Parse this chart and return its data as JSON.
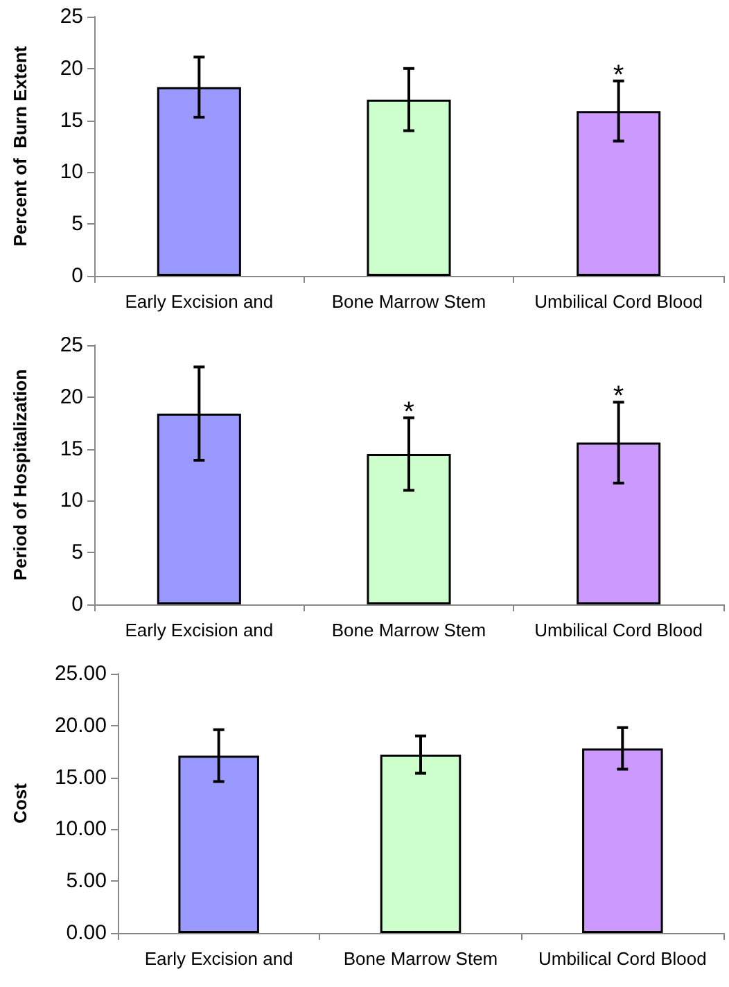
{
  "chart_data": [
    {
      "type": "bar",
      "ylabel": "Percent of  Burn Extent",
      "categories": [
        "Early Excision and",
        "Bone Marrow Stem",
        "Umbilical Cord Blood"
      ],
      "values": [
        18.2,
        17.0,
        15.9
      ],
      "errors": [
        2.9,
        3.0,
        2.9
      ],
      "colors": [
        "#9999ff",
        "#ccffcc",
        "#cc99ff"
      ],
      "ylim": [
        0,
        25
      ],
      "yticks": [
        0,
        5,
        10,
        15,
        20,
        25
      ],
      "grid": false,
      "annotations": [
        {
          "text": "*",
          "x": "Umbilical Cord Blood",
          "y": 18.8
        }
      ]
    },
    {
      "type": "bar",
      "ylabel": "Period of Hospitalization",
      "categories": [
        "Early Excision and",
        "Bone Marrow Stem",
        "Umbilical Cord Blood"
      ],
      "values": [
        18.4,
        14.5,
        15.6
      ],
      "errors": [
        4.5,
        3.5,
        3.9
      ],
      "colors": [
        "#9999ff",
        "#ccffcc",
        "#cc99ff"
      ],
      "ylim": [
        0,
        25
      ],
      "yticks": [
        0,
        5,
        10,
        15,
        20,
        25
      ],
      "grid": false,
      "annotations": [
        {
          "text": "*",
          "x": "Bone Marrow Stem",
          "y": 18.0
        },
        {
          "text": "*",
          "x": "Umbilical Cord Blood",
          "y": 19.5
        }
      ]
    },
    {
      "type": "bar",
      "ylabel": "Cost",
      "categories": [
        "Early Excision and",
        "Bone Marrow Stem",
        "Umbilical Cord Blood"
      ],
      "values": [
        17.1,
        17.2,
        17.8
      ],
      "errors": [
        2.5,
        1.8,
        2.0
      ],
      "colors": [
        "#9999ff",
        "#ccffcc",
        "#cc99ff"
      ],
      "ylim": [
        0,
        25
      ],
      "yticks": [
        {
          "value": 0,
          "label": "0.00"
        },
        {
          "value": 5,
          "label": "5.00"
        },
        {
          "value": 10,
          "label": "10.00"
        },
        {
          "value": 15,
          "label": "15.00"
        },
        {
          "value": 20,
          "label": "20.00"
        },
        {
          "value": 25,
          "label": "25.00"
        }
      ],
      "grid": false
    }
  ]
}
